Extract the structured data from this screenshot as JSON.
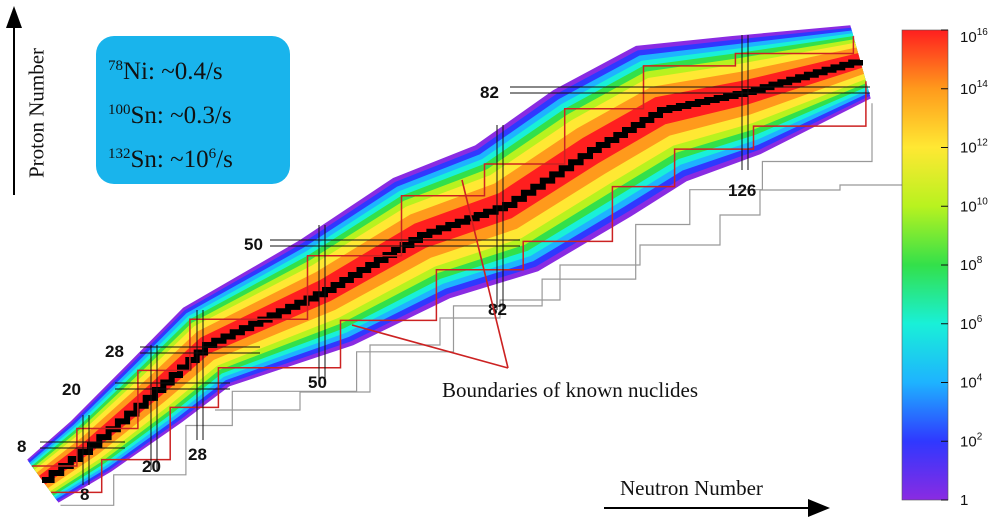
{
  "chart_data": {
    "type": "heatmap",
    "title": "",
    "xlabel": "Neutron Number",
    "ylabel": "Proton Number",
    "xlim": [
      0,
      160
    ],
    "ylim": [
      0,
      100
    ],
    "magic_numbers_neutron": [
      "8",
      "20",
      "28",
      "50",
      "82",
      "126"
    ],
    "magic_numbers_proton": [
      "8",
      "20",
      "28",
      "50",
      "82"
    ],
    "colorbar": {
      "scale": "log",
      "min": 1,
      "max": 1e+16,
      "ticks": [
        {
          "base": "1",
          "exp": ""
        },
        {
          "base": "10",
          "exp": "2"
        },
        {
          "base": "10",
          "exp": "4"
        },
        {
          "base": "10",
          "exp": "6"
        },
        {
          "base": "10",
          "exp": "8"
        },
        {
          "base": "10",
          "exp": "10"
        },
        {
          "base": "10",
          "exp": "12"
        },
        {
          "base": "10",
          "exp": "14"
        },
        {
          "base": "10",
          "exp": "16"
        }
      ],
      "colors": [
        "#8a2be2",
        "#2f38ff",
        "#1eb3ff",
        "#19f0d8",
        "#33e04a",
        "#b8f21f",
        "#ffe833",
        "#ff9a1c",
        "#ff1f1f"
      ]
    },
    "rates": [
      {
        "mass": "78",
        "element": "Ni",
        "rate_pre": "~0.4/s",
        "rate_exp": ""
      },
      {
        "mass": "100",
        "element": "Sn",
        "rate_pre": "~0.3/s",
        "rate_exp": ""
      },
      {
        "mass": "132",
        "element": "Sn",
        "rate_pre": "~10",
        "rate_exp": "6",
        "rate_post": "/s"
      }
    ],
    "annotation": "Boundaries  of known nuclides",
    "boundary_color": "#cc2222"
  }
}
